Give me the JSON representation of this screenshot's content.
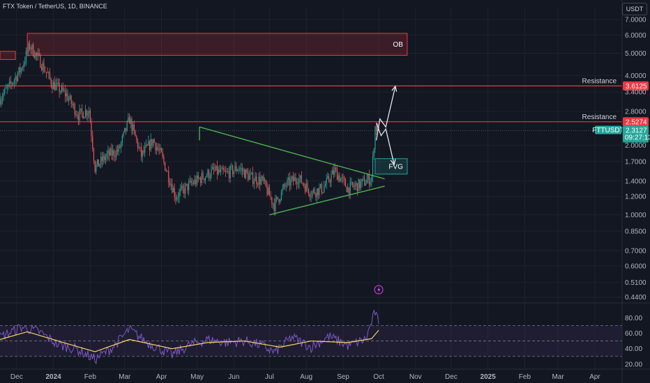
{
  "header": {
    "title": "FTX Token / TetherUS, 1D, BINANCE",
    "currency": "USDT"
  },
  "chart_data": {
    "type": "candlestick",
    "y_scale": "log",
    "ylim": [
      0.43,
      7.3
    ],
    "price_ticks": [
      "7.0000",
      "6.0000",
      "5.0000",
      "4.0000",
      "3.4000",
      "2.8000",
      "2.0000",
      "1.7000",
      "1.4000",
      "1.2000",
      "1.0000",
      "0.8500",
      "0.7000",
      "0.6000",
      "0.5100",
      "0.4400"
    ],
    "x_ticks": [
      "Dec",
      "2024",
      "Feb",
      "Mar",
      "Apr",
      "May",
      "Jun",
      "Jul",
      "Aug",
      "Sep",
      "Oct",
      "Nov",
      "Dec",
      "2025",
      "Feb",
      "Mar",
      "Apr"
    ],
    "x_tick_dates": [
      "2023-12-01",
      "2024-01-01",
      "2024-02-01",
      "2024-03-01",
      "2024-04-01",
      "2024-05-01",
      "2024-06-01",
      "2024-07-01",
      "2024-08-01",
      "2024-09-01",
      "2024-10-01",
      "2024-11-01",
      "2024-12-01",
      "2025-01-01",
      "2025-02-01",
      "2025-03-01",
      "2025-04-01"
    ],
    "price_path": [
      {
        "date": "2023-11-17",
        "close": 3.2
      },
      {
        "date": "2023-11-25",
        "close": 3.6
      },
      {
        "date": "2023-12-05",
        "close": 4.3
      },
      {
        "date": "2023-12-12",
        "close": 5.4
      },
      {
        "date": "2023-12-20",
        "close": 4.7
      },
      {
        "date": "2023-12-31",
        "close": 3.7
      },
      {
        "date": "2024-01-12",
        "close": 3.3
      },
      {
        "date": "2024-01-22",
        "close": 2.7
      },
      {
        "date": "2024-01-31",
        "close": 2.85
      },
      {
        "date": "2024-02-05",
        "close": 1.6
      },
      {
        "date": "2024-02-15",
        "close": 1.8
      },
      {
        "date": "2024-02-25",
        "close": 1.9
      },
      {
        "date": "2024-03-05",
        "close": 2.6
      },
      {
        "date": "2024-03-15",
        "close": 1.8
      },
      {
        "date": "2024-03-25",
        "close": 2.1
      },
      {
        "date": "2024-04-01",
        "close": 1.8
      },
      {
        "date": "2024-04-13",
        "close": 1.2
      },
      {
        "date": "2024-04-25",
        "close": 1.35
      },
      {
        "date": "2024-05-05",
        "close": 1.45
      },
      {
        "date": "2024-05-15",
        "close": 1.55
      },
      {
        "date": "2024-05-25",
        "close": 1.5
      },
      {
        "date": "2024-06-05",
        "close": 1.6
      },
      {
        "date": "2024-06-15",
        "close": 1.45
      },
      {
        "date": "2024-06-25",
        "close": 1.4
      },
      {
        "date": "2024-07-05",
        "close": 1.1
      },
      {
        "date": "2024-07-15",
        "close": 1.35
      },
      {
        "date": "2024-07-25",
        "close": 1.45
      },
      {
        "date": "2024-08-05",
        "close": 1.25
      },
      {
        "date": "2024-08-15",
        "close": 1.3
      },
      {
        "date": "2024-08-25",
        "close": 1.55
      },
      {
        "date": "2024-09-05",
        "close": 1.3
      },
      {
        "date": "2024-09-15",
        "close": 1.35
      },
      {
        "date": "2024-09-25",
        "close": 1.45
      },
      {
        "date": "2024-09-28",
        "close": 2.4
      },
      {
        "date": "2024-10-01",
        "close": 2.3127
      }
    ],
    "zones": [
      {
        "label": "OB",
        "from_date": "2023-12-10",
        "to_date": "2024-10-25",
        "low": 4.9,
        "high": 6.1,
        "color": "#f23645"
      },
      {
        "label": "FVG",
        "from_date": "2024-09-28",
        "to_date": "2024-10-25",
        "low": 1.5,
        "high": 1.75,
        "color": "#26a69a"
      },
      {
        "label": "",
        "from_date": "2023-11-17",
        "to_date": "2023-11-30",
        "low": 4.7,
        "high": 5.1,
        "color": "#f23645"
      }
    ],
    "resistance": [
      {
        "label": "Resistance",
        "price": 3.6125,
        "price_label": "3.6125"
      },
      {
        "label": "Resistance",
        "price": 2.5274,
        "price_label": "2.5274"
      }
    ],
    "triangle": {
      "upper": [
        {
          "date": "2024-05-03",
          "price": 2.4
        },
        {
          "date": "2024-10-06",
          "price": 1.43
        }
      ],
      "lower": [
        {
          "date": "2024-07-01",
          "price": 1.0
        },
        {
          "date": "2024-10-06",
          "price": 1.33
        }
      ],
      "left_edge": [
        {
          "date": "2024-05-03",
          "price": 2.4
        },
        {
          "date": "2024-05-03",
          "price": 2.1
        }
      ]
    },
    "projection": [
      {
        "date": "2024-09-29",
        "price": 2.1
      },
      {
        "date": "2024-10-02",
        "price": 2.6
      },
      {
        "date": "2024-10-07",
        "price": 2.4
      },
      {
        "date": "2024-10-15",
        "price": 3.6
      }
    ],
    "projection_down": [
      {
        "date": "2024-09-29",
        "price": 2.5
      },
      {
        "date": "2024-10-03",
        "price": 2.2
      },
      {
        "date": "2024-10-07",
        "price": 2.35
      },
      {
        "date": "2024-10-14",
        "price": 1.65
      }
    ],
    "last_price": {
      "symbol": "FTTUSDT",
      "price": 2.3127,
      "label": "2.3127",
      "countdown": "09:27:13",
      "color": "#26a69a"
    },
    "indicator": {
      "name": "RSI",
      "ylim": [
        18,
        95
      ],
      "ticks": [
        "80.00",
        "60.00",
        "40.00",
        "20.00"
      ],
      "upper_band": 70,
      "mid_band": 50,
      "lower_band": 30,
      "rsi_path": [
        {
          "date": "2023-11-17",
          "value": 55
        },
        {
          "date": "2023-12-05",
          "value": 68
        },
        {
          "date": "2023-12-20",
          "value": 62
        },
        {
          "date": "2024-01-05",
          "value": 45
        },
        {
          "date": "2024-01-20",
          "value": 40
        },
        {
          "date": "2024-02-05",
          "value": 26
        },
        {
          "date": "2024-02-20",
          "value": 42
        },
        {
          "date": "2024-03-05",
          "value": 65
        },
        {
          "date": "2024-03-20",
          "value": 48
        },
        {
          "date": "2024-04-10",
          "value": 32
        },
        {
          "date": "2024-04-25",
          "value": 45
        },
        {
          "date": "2024-05-10",
          "value": 52
        },
        {
          "date": "2024-05-25",
          "value": 48
        },
        {
          "date": "2024-06-10",
          "value": 50
        },
        {
          "date": "2024-06-25",
          "value": 44
        },
        {
          "date": "2024-07-05",
          "value": 35
        },
        {
          "date": "2024-07-20",
          "value": 55
        },
        {
          "date": "2024-08-05",
          "value": 42
        },
        {
          "date": "2024-08-20",
          "value": 56
        },
        {
          "date": "2024-09-05",
          "value": 44
        },
        {
          "date": "2024-09-20",
          "value": 52
        },
        {
          "date": "2024-09-28",
          "value": 88
        },
        {
          "date": "2024-10-01",
          "value": 72
        }
      ],
      "ma_path": [
        {
          "date": "2023-11-17",
          "value": 52
        },
        {
          "date": "2023-12-10",
          "value": 62
        },
        {
          "date": "2024-01-05",
          "value": 50
        },
        {
          "date": "2024-02-05",
          "value": 36
        },
        {
          "date": "2024-03-05",
          "value": 52
        },
        {
          "date": "2024-04-10",
          "value": 40
        },
        {
          "date": "2024-05-10",
          "value": 48
        },
        {
          "date": "2024-06-10",
          "value": 50
        },
        {
          "date": "2024-07-10",
          "value": 42
        },
        {
          "date": "2024-08-05",
          "value": 50
        },
        {
          "date": "2024-09-05",
          "value": 48
        },
        {
          "date": "2024-09-25",
          "value": 53
        },
        {
          "date": "2024-10-01",
          "value": 64
        }
      ]
    },
    "colors": {
      "up": "#26a69a",
      "down": "#ef5350",
      "background": "#131722",
      "grid": "#1e222d",
      "axis_text": "#b2b5be",
      "triangle": "#4caf50",
      "resistance": "#f23645",
      "rsi": "#7e57c2",
      "rsi_ma": "#f7d35f"
    }
  }
}
